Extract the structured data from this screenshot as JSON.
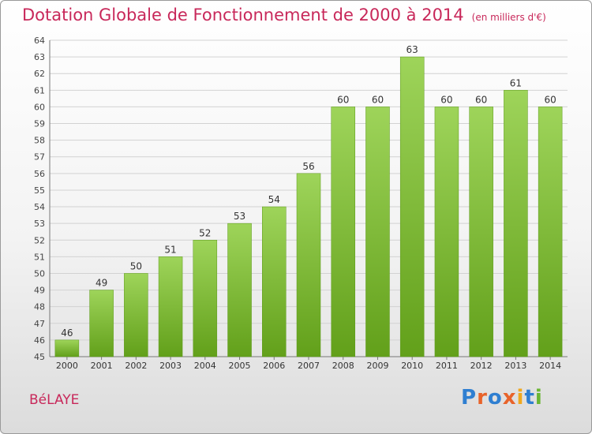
{
  "title": "Dotation Globale de Fonctionnement de 2000 à 2014",
  "unit": "(en milliers d'€)",
  "place": "BéLAYE",
  "logo": {
    "text": "Proxiti",
    "colors": [
      "#2f7fd1",
      "#e8632a",
      "#2f7fd1",
      "#e8632a",
      "#f0a81e",
      "#2f7fd1",
      "#6ab633"
    ]
  },
  "chart_data": {
    "type": "bar",
    "categories": [
      "2000",
      "2001",
      "2002",
      "2003",
      "2004",
      "2005",
      "2006",
      "2007",
      "2008",
      "2009",
      "2010",
      "2011",
      "2012",
      "2013",
      "2014"
    ],
    "values": [
      46,
      49,
      50,
      51,
      52,
      53,
      54,
      56,
      60,
      60,
      63,
      60,
      60,
      61,
      60
    ],
    "ylim": [
      45,
      64
    ],
    "yticks": [
      45,
      46,
      47,
      48,
      49,
      50,
      51,
      52,
      53,
      54,
      55,
      56,
      57,
      58,
      59,
      60,
      61,
      62,
      63,
      64
    ],
    "grid": true,
    "bar_color": "#7ec23a",
    "xlabel": "",
    "ylabel": ""
  }
}
